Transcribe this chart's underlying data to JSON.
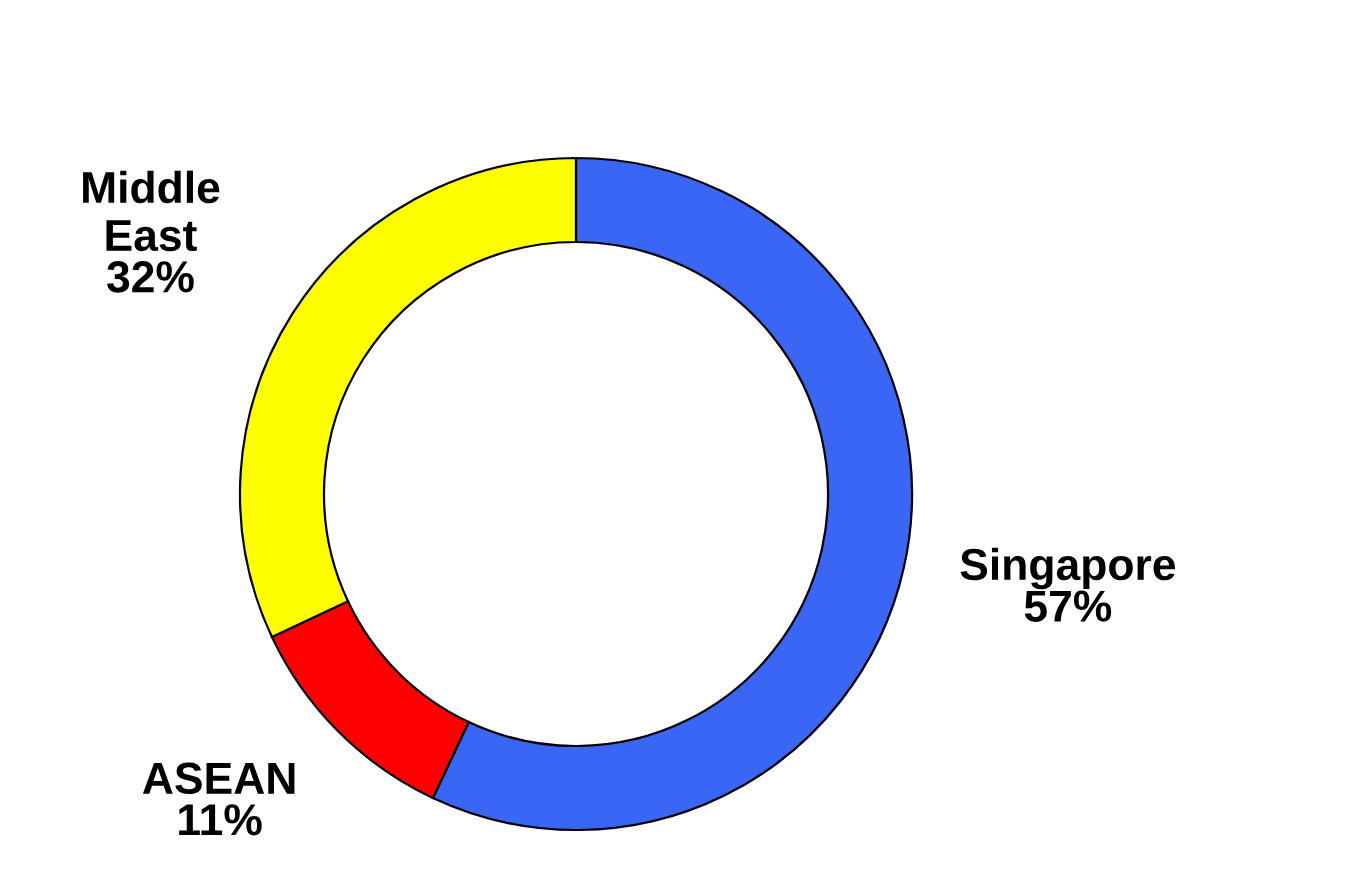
{
  "chart_data": {
    "type": "donut",
    "categories": [
      "Singapore",
      "ASEAN",
      "Middle East"
    ],
    "values": [
      57,
      11,
      32
    ],
    "colors": [
      "#3a66f5",
      "#ff0000",
      "#ffff00"
    ],
    "value_labels": [
      "57%",
      "11%",
      "32%"
    ]
  }
}
